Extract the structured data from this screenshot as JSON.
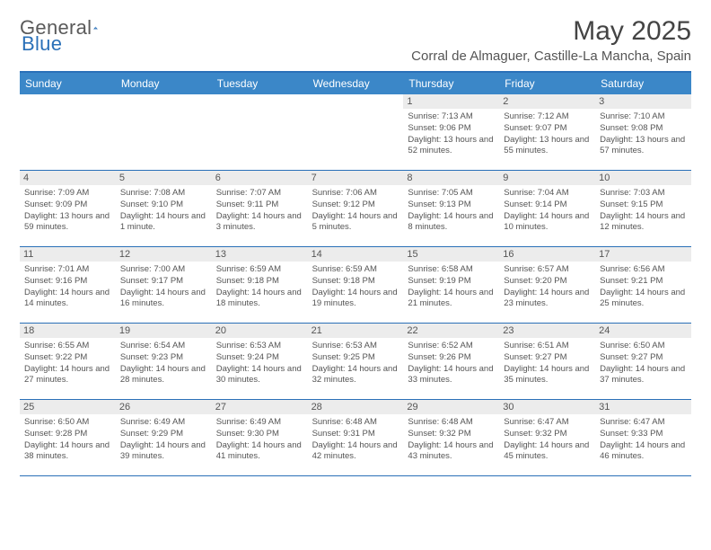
{
  "brand": {
    "word1": "General",
    "word2": "Blue"
  },
  "title": "May 2025",
  "location": "Corral de Almaguer, Castille-La Mancha, Spain",
  "colors": {
    "accent": "#2a70b8",
    "header_bg": "#3b87c8",
    "daynum_bg": "#ececec",
    "text": "#555"
  },
  "day_names": [
    "Sunday",
    "Monday",
    "Tuesday",
    "Wednesday",
    "Thursday",
    "Friday",
    "Saturday"
  ],
  "weeks": [
    [
      null,
      null,
      null,
      null,
      {
        "n": "1",
        "sr": "7:13 AM",
        "ss": "9:06 PM",
        "dl": "13 hours and 52 minutes."
      },
      {
        "n": "2",
        "sr": "7:12 AM",
        "ss": "9:07 PM",
        "dl": "13 hours and 55 minutes."
      },
      {
        "n": "3",
        "sr": "7:10 AM",
        "ss": "9:08 PM",
        "dl": "13 hours and 57 minutes."
      }
    ],
    [
      {
        "n": "4",
        "sr": "7:09 AM",
        "ss": "9:09 PM",
        "dl": "13 hours and 59 minutes."
      },
      {
        "n": "5",
        "sr": "7:08 AM",
        "ss": "9:10 PM",
        "dl": "14 hours and 1 minute."
      },
      {
        "n": "6",
        "sr": "7:07 AM",
        "ss": "9:11 PM",
        "dl": "14 hours and 3 minutes."
      },
      {
        "n": "7",
        "sr": "7:06 AM",
        "ss": "9:12 PM",
        "dl": "14 hours and 5 minutes."
      },
      {
        "n": "8",
        "sr": "7:05 AM",
        "ss": "9:13 PM",
        "dl": "14 hours and 8 minutes."
      },
      {
        "n": "9",
        "sr": "7:04 AM",
        "ss": "9:14 PM",
        "dl": "14 hours and 10 minutes."
      },
      {
        "n": "10",
        "sr": "7:03 AM",
        "ss": "9:15 PM",
        "dl": "14 hours and 12 minutes."
      }
    ],
    [
      {
        "n": "11",
        "sr": "7:01 AM",
        "ss": "9:16 PM",
        "dl": "14 hours and 14 minutes."
      },
      {
        "n": "12",
        "sr": "7:00 AM",
        "ss": "9:17 PM",
        "dl": "14 hours and 16 minutes."
      },
      {
        "n": "13",
        "sr": "6:59 AM",
        "ss": "9:18 PM",
        "dl": "14 hours and 18 minutes."
      },
      {
        "n": "14",
        "sr": "6:59 AM",
        "ss": "9:18 PM",
        "dl": "14 hours and 19 minutes."
      },
      {
        "n": "15",
        "sr": "6:58 AM",
        "ss": "9:19 PM",
        "dl": "14 hours and 21 minutes."
      },
      {
        "n": "16",
        "sr": "6:57 AM",
        "ss": "9:20 PM",
        "dl": "14 hours and 23 minutes."
      },
      {
        "n": "17",
        "sr": "6:56 AM",
        "ss": "9:21 PM",
        "dl": "14 hours and 25 minutes."
      }
    ],
    [
      {
        "n": "18",
        "sr": "6:55 AM",
        "ss": "9:22 PM",
        "dl": "14 hours and 27 minutes."
      },
      {
        "n": "19",
        "sr": "6:54 AM",
        "ss": "9:23 PM",
        "dl": "14 hours and 28 minutes."
      },
      {
        "n": "20",
        "sr": "6:53 AM",
        "ss": "9:24 PM",
        "dl": "14 hours and 30 minutes."
      },
      {
        "n": "21",
        "sr": "6:53 AM",
        "ss": "9:25 PM",
        "dl": "14 hours and 32 minutes."
      },
      {
        "n": "22",
        "sr": "6:52 AM",
        "ss": "9:26 PM",
        "dl": "14 hours and 33 minutes."
      },
      {
        "n": "23",
        "sr": "6:51 AM",
        "ss": "9:27 PM",
        "dl": "14 hours and 35 minutes."
      },
      {
        "n": "24",
        "sr": "6:50 AM",
        "ss": "9:27 PM",
        "dl": "14 hours and 37 minutes."
      }
    ],
    [
      {
        "n": "25",
        "sr": "6:50 AM",
        "ss": "9:28 PM",
        "dl": "14 hours and 38 minutes."
      },
      {
        "n": "26",
        "sr": "6:49 AM",
        "ss": "9:29 PM",
        "dl": "14 hours and 39 minutes."
      },
      {
        "n": "27",
        "sr": "6:49 AM",
        "ss": "9:30 PM",
        "dl": "14 hours and 41 minutes."
      },
      {
        "n": "28",
        "sr": "6:48 AM",
        "ss": "9:31 PM",
        "dl": "14 hours and 42 minutes."
      },
      {
        "n": "29",
        "sr": "6:48 AM",
        "ss": "9:32 PM",
        "dl": "14 hours and 43 minutes."
      },
      {
        "n": "30",
        "sr": "6:47 AM",
        "ss": "9:32 PM",
        "dl": "14 hours and 45 minutes."
      },
      {
        "n": "31",
        "sr": "6:47 AM",
        "ss": "9:33 PM",
        "dl": "14 hours and 46 minutes."
      }
    ]
  ],
  "labels": {
    "sunrise": "Sunrise: ",
    "sunset": "Sunset: ",
    "daylight": "Daylight: "
  }
}
